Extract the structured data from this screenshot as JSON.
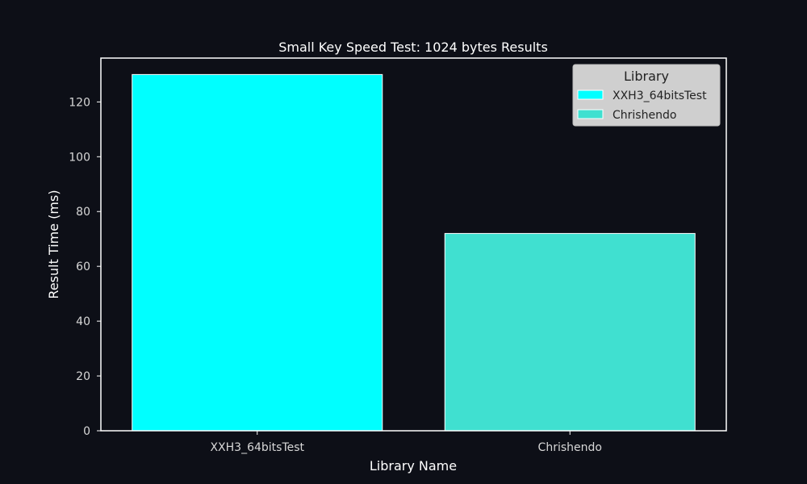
{
  "chart_data": {
    "type": "bar",
    "title": "Small Key Speed Test: 1024 bytes Results",
    "xlabel": "Library Name",
    "ylabel": "Result Time (ms)",
    "categories": [
      "XXH3_64bitsTest",
      "Chrishendo"
    ],
    "values": [
      130,
      72
    ],
    "bar_colors": [
      "#00ffff",
      "#40e0d0"
    ],
    "ylim": [
      0,
      136
    ],
    "yticks": [
      0,
      20,
      40,
      60,
      80,
      100,
      120
    ],
    "grid": false,
    "legend": {
      "title": "Library",
      "placement": "top-right",
      "entries": [
        "XXH3_64bitsTest",
        "Chrishendo"
      ]
    },
    "colors": {
      "background": "#0d0f17",
      "axes": "#ffffff",
      "text": "#ffffff",
      "tick_text": "#d8d8d8",
      "legend_bg": "#cfcfcf",
      "legend_text": "#222222"
    }
  }
}
